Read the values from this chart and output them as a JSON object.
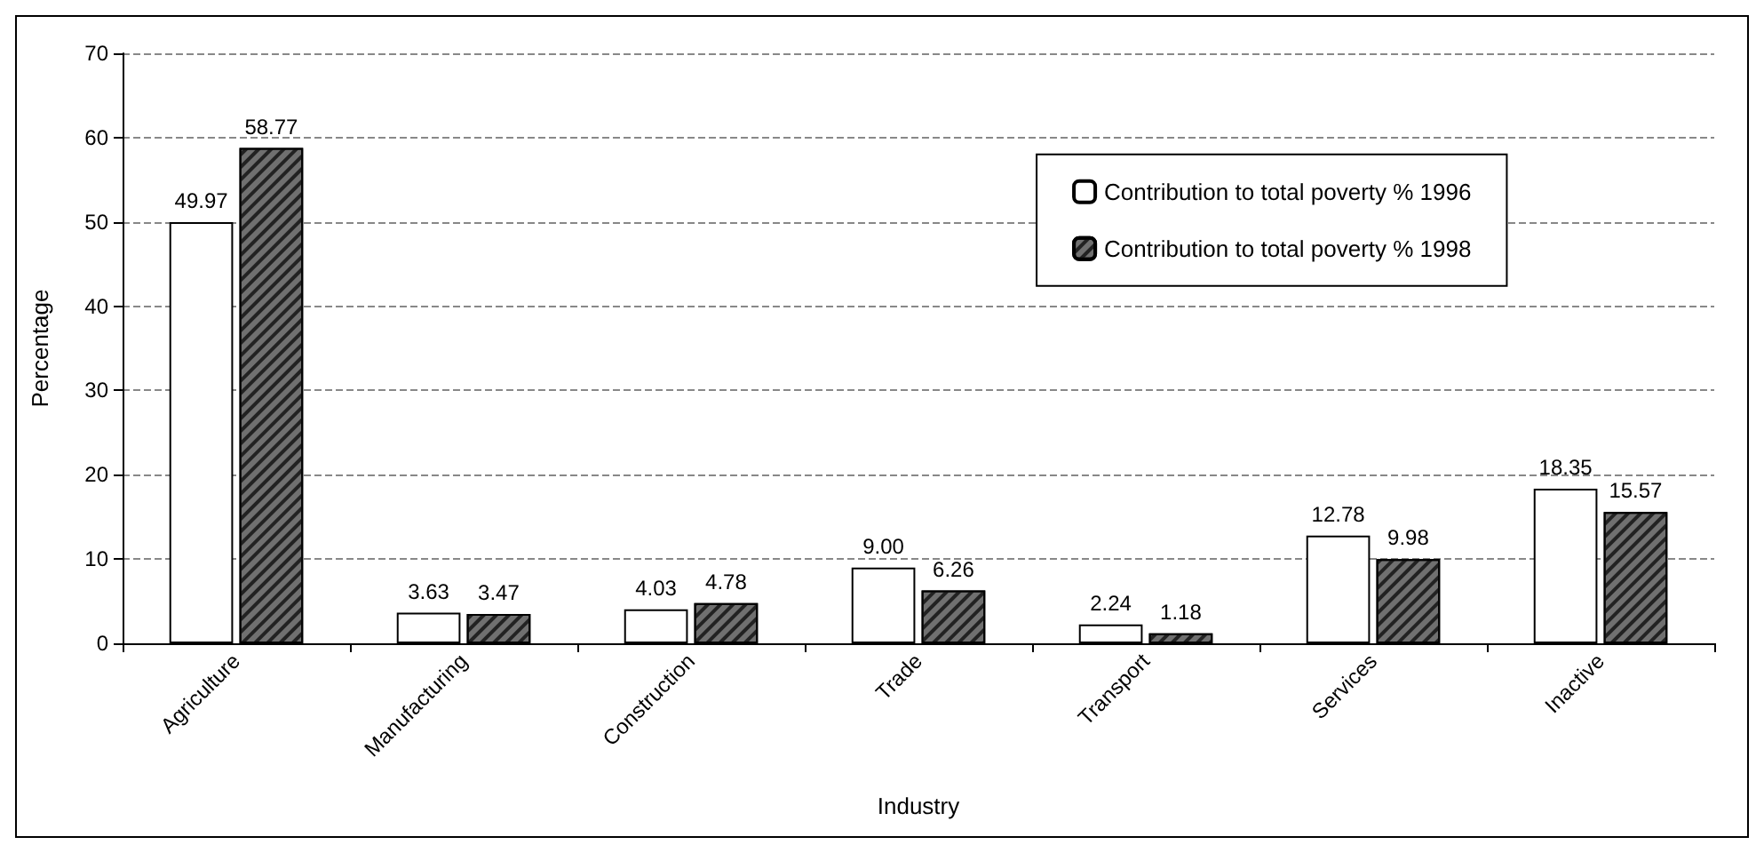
{
  "chart_data": {
    "type": "bar",
    "xlabel": "Industry",
    "ylabel": "Percentage",
    "categories": [
      "Agriculture",
      "Manufacturing",
      "Construction",
      "Trade",
      "Transport",
      "Services",
      "Inactive"
    ],
    "series": [
      {
        "name": "Contribution to total poverty % 1996",
        "color": "#ffffff",
        "values": [
          49.97,
          3.63,
          4.03,
          9.0,
          2.24,
          12.78,
          18.35
        ],
        "value_labels": [
          "49.97",
          "3.63",
          "4.03",
          "9.00",
          "2.24",
          "12.78",
          "18.35"
        ]
      },
      {
        "name": "Contribution to total poverty % 1998",
        "color": "#707070",
        "values": [
          58.77,
          3.47,
          4.78,
          6.26,
          1.18,
          9.98,
          15.57
        ],
        "value_labels": [
          "58.77",
          "3.47",
          "4.78",
          "6.26",
          "1.18",
          "9.98",
          "15.57"
        ]
      }
    ],
    "ylim": [
      0,
      70
    ],
    "yticks": [
      0,
      10,
      20,
      30,
      40,
      50,
      60,
      70
    ],
    "grid": "y",
    "legend": "top right"
  }
}
